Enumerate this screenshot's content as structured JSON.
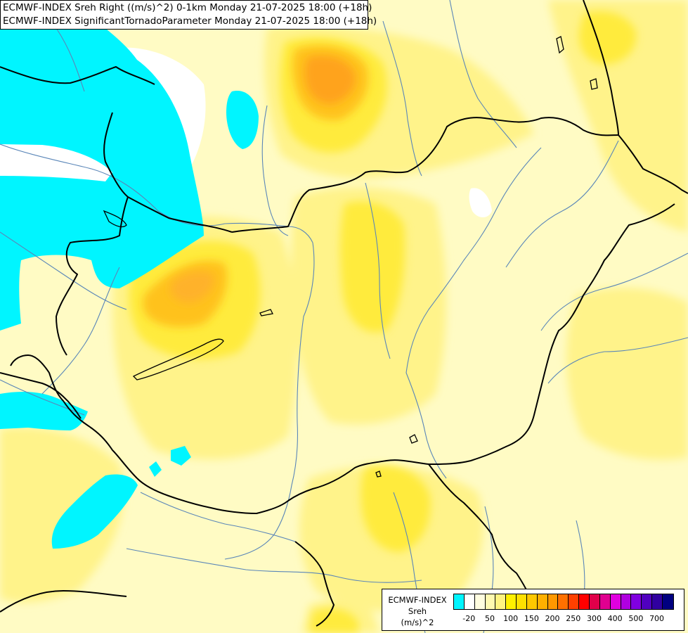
{
  "title_lines": [
    "ECMWF-INDEX Sreh Right ((m/s)^2) 0-1km Monday 21-07-2025 18:00 (+18h)",
    "ECMWF-INDEX SignificantTornadoParameter Monday 21-07-2025 18:00 (+18h)"
  ],
  "legend": {
    "title_lines": [
      "ECMWF-INDEX",
      "Sreh",
      "(m/s)^2"
    ],
    "colors": [
      "#00f5ff",
      "#ffffff",
      "#fffde0",
      "#fff9b0",
      "#fff380",
      "#fff000",
      "#ffe000",
      "#ffc800",
      "#ffb000",
      "#ff9800",
      "#ff7000",
      "#ff4000",
      "#ff0000",
      "#e0004a",
      "#e00090",
      "#e000e0",
      "#b000e0",
      "#8000e0",
      "#5000c0",
      "#3000a0",
      "#000080"
    ],
    "tick_labels": [
      "-20",
      "50",
      "100",
      "150",
      "200",
      "250",
      "300",
      "400",
      "500",
      "700"
    ]
  },
  "palette": {
    "background": "#fffbc4",
    "cyan": "#00f5ff",
    "white": "#ffffff",
    "light_yellow": "#fff9b0",
    "yellow": "#fff38a",
    "bright_yellow": "#ffeb3c",
    "gold": "#ffdc14",
    "orange_light": "#ffc21e",
    "orange": "#ffa31a",
    "border_color": "#000000",
    "river_color": "#5a86b8"
  }
}
